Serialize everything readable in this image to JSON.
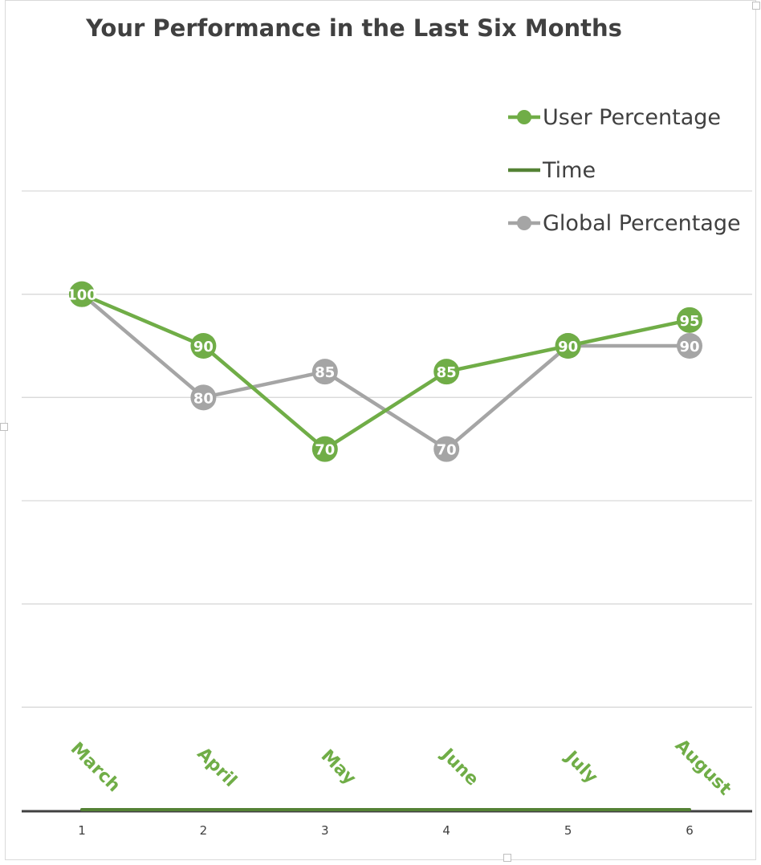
{
  "chart_data": {
    "type": "line",
    "title": "Your Performance in the Last Six Months",
    "x": [
      1,
      2,
      3,
      4,
      5,
      6
    ],
    "x_tick_labels": [
      "1",
      "2",
      "3",
      "4",
      "5",
      "6"
    ],
    "month_labels": [
      "March",
      "April",
      "May",
      "June",
      "July",
      "August"
    ],
    "series": [
      {
        "name": "User Percentage",
        "values": [
          100,
          90,
          70,
          85,
          90,
          95
        ],
        "color": "#70ad47",
        "markers": true
      },
      {
        "name": "Time",
        "values": [
          0,
          0,
          0,
          0,
          0,
          0
        ],
        "color": "#548235",
        "markers": false
      },
      {
        "name": "Global Percentage",
        "values": [
          100,
          80,
          85,
          70,
          90,
          90
        ],
        "color": "#a5a5a5",
        "markers": true
      }
    ],
    "data_labels": {
      "User Percentage": [
        "100",
        "90",
        "70",
        "85",
        "90",
        "95"
      ],
      "Global Percentage": [
        "100",
        "80",
        "85",
        "70",
        "90",
        "90"
      ]
    },
    "ylim": [
      0,
      120
    ],
    "y_gridlines": true,
    "y_tick_labels_shown": false,
    "legend_position": "top-right",
    "colors": {
      "user": "#70ad47",
      "time": "#548235",
      "global": "#a5a5a5",
      "gridline": "#d9d9d9",
      "axis": "#404040",
      "title": "#404040"
    }
  }
}
